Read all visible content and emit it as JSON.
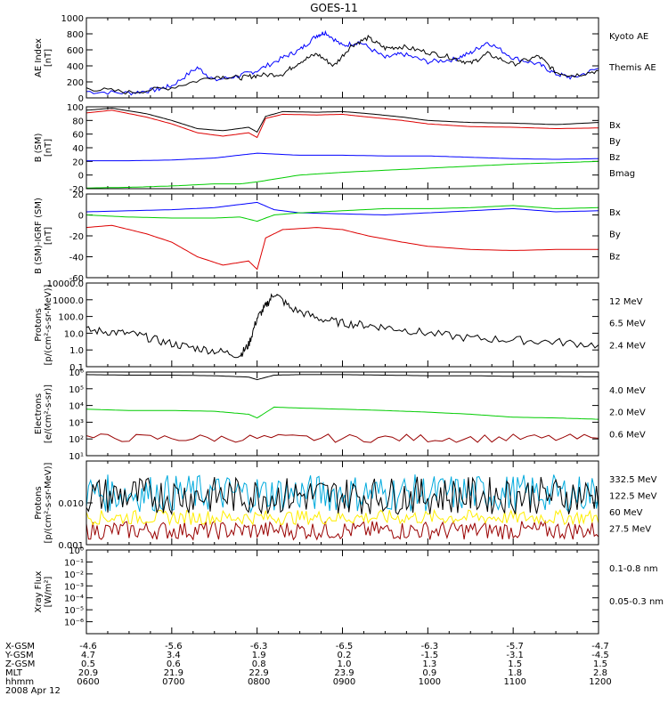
{
  "title": "GOES-11",
  "x_ticks": [
    "0600",
    "0700",
    "0800",
    "0900",
    "1000",
    "1100",
    "1200"
  ],
  "footer": {
    "rows": [
      {
        "label": "X-GSM",
        "values": [
          "-4.6",
          "-5.6",
          "-6.3",
          "-6.5",
          "-6.3",
          "-5.7",
          "-4.7"
        ]
      },
      {
        "label": "Y-GSM",
        "values": [
          "4.7",
          "3.4",
          "1.9",
          "0.2",
          "-1.5",
          "-3.1",
          "-4.5"
        ]
      },
      {
        "label": "Z-GSM",
        "values": [
          "0.5",
          "0.6",
          "0.8",
          "1.0",
          "1.3",
          "1.5",
          "1.5"
        ]
      },
      {
        "label": "MLT",
        "values": [
          "20.9",
          "21.9",
          "22.9",
          "23.9",
          "0.9",
          "1.8",
          "2.8"
        ]
      },
      {
        "label": "hhmm",
        "values": [
          "0600",
          "0700",
          "0800",
          "0900",
          "1000",
          "1100",
          "1200"
        ]
      }
    ],
    "date": "2008 Apr 12"
  },
  "colors": {
    "blue": "#0000ff",
    "green": "#00cc00",
    "red": "#dd0000",
    "darkred": "#990000",
    "yellow": "#ffee00",
    "cyan": "#00aadd",
    "black": "#000000"
  },
  "chart_data": [
    {
      "type": "line",
      "id": "ae",
      "ylabel": [
        "AE Index",
        "[nT]"
      ],
      "ylim": [
        0,
        1000
      ],
      "log": false,
      "ytick_labels": [
        "0",
        "200",
        "400",
        "600",
        "800",
        "1000"
      ],
      "yticks": [
        0,
        200,
        400,
        600,
        800,
        1000
      ],
      "series": [
        {
          "name": "Kyoto AE",
          "color": "blue",
          "x": [
            6.0,
            6.5,
            6.8,
            7.0,
            7.3,
            7.5,
            7.8,
            8.0,
            8.3,
            8.5,
            8.7,
            8.8,
            9.0,
            9.2,
            9.5,
            9.7,
            10.0,
            10.3,
            10.5,
            10.7,
            11.0,
            11.3,
            11.5,
            11.7,
            12.0
          ],
          "y": [
            80,
            60,
            100,
            150,
            380,
            220,
            280,
            340,
            500,
            600,
            780,
            820,
            650,
            700,
            500,
            550,
            450,
            480,
            560,
            700,
            500,
            420,
            300,
            250,
            370
          ]
        },
        {
          "name": "Themis AE",
          "color": "black",
          "x": [
            6.0,
            6.5,
            7.0,
            7.5,
            7.8,
            8.0,
            8.3,
            8.5,
            8.7,
            8.9,
            9.1,
            9.3,
            9.5,
            9.7,
            10.0,
            10.3,
            10.5,
            10.7,
            11.0,
            11.3,
            11.5,
            11.7,
            12.0
          ],
          "y": [
            120,
            70,
            130,
            270,
            250,
            280,
            300,
            450,
            550,
            400,
            650,
            750,
            620,
            640,
            570,
            500,
            430,
            550,
            420,
            520,
            320,
            280,
            340
          ]
        }
      ]
    },
    {
      "type": "line",
      "id": "b_sm",
      "ylabel": [
        "B (SM)",
        "[nT]"
      ],
      "ylim": [
        -20,
        100
      ],
      "log": false,
      "ytick_labels": [
        "-20",
        "0",
        "20",
        "40",
        "60",
        "80",
        "100"
      ],
      "yticks": [
        -20,
        0,
        20,
        40,
        60,
        80,
        100
      ],
      "series": [
        {
          "name": "Bx",
          "color": "blue",
          "x": [
            6.0,
            6.5,
            7.0,
            7.5,
            8.0,
            8.5,
            9.0,
            9.5,
            10.0,
            10.5,
            11.0,
            11.5,
            12.0
          ],
          "y": [
            21,
            21,
            22,
            25,
            32,
            29,
            29,
            28,
            28,
            26,
            24,
            23,
            24
          ]
        },
        {
          "name": "By",
          "color": "green",
          "x": [
            6.0,
            6.5,
            7.0,
            7.5,
            7.8,
            8.0,
            8.5,
            9.0,
            9.5,
            10.0,
            10.5,
            11.0,
            11.5,
            12.0
          ],
          "y": [
            -19,
            -18,
            -16,
            -13,
            -13,
            -10,
            0,
            4,
            7,
            10,
            13,
            16,
            18,
            20
          ]
        },
        {
          "name": "Bz",
          "color": "red",
          "x": [
            6.0,
            6.3,
            6.7,
            7.0,
            7.3,
            7.6,
            7.9,
            8.0,
            8.1,
            8.3,
            8.7,
            9.0,
            9.3,
            9.7,
            10.0,
            10.5,
            11.0,
            11.5,
            12.0
          ],
          "y": [
            91,
            95,
            85,
            75,
            62,
            57,
            62,
            55,
            83,
            89,
            88,
            89,
            85,
            80,
            75,
            71,
            70,
            68,
            69
          ]
        },
        {
          "name": "Bmag",
          "color": "black",
          "x": [
            6.0,
            6.3,
            6.7,
            7.0,
            7.3,
            7.6,
            7.9,
            8.0,
            8.1,
            8.3,
            8.7,
            9.0,
            9.3,
            9.7,
            10.0,
            10.5,
            11.0,
            11.5,
            12.0
          ],
          "y": [
            95,
            98,
            90,
            80,
            68,
            65,
            70,
            63,
            86,
            93,
            92,
            93,
            90,
            85,
            80,
            77,
            76,
            74,
            77
          ]
        }
      ]
    },
    {
      "type": "line",
      "id": "b_igrf",
      "ylabel": [
        "B (SM)-IGRF (SM)",
        "[nT]"
      ],
      "ylim": [
        -60,
        20
      ],
      "log": false,
      "ytick_labels": [
        "-60",
        "-40",
        "-20",
        "0",
        "20"
      ],
      "yticks": [
        -60,
        -40,
        -20,
        0,
        20
      ],
      "series": [
        {
          "name": "Bx",
          "color": "blue",
          "x": [
            6.0,
            6.5,
            7.0,
            7.5,
            7.8,
            8.0,
            8.2,
            8.5,
            9.0,
            9.5,
            10.0,
            10.5,
            11.0,
            11.5,
            12.0
          ],
          "y": [
            3,
            4,
            5,
            7,
            10,
            12,
            5,
            2,
            1,
            0,
            2,
            4,
            6,
            3,
            4
          ]
        },
        {
          "name": "By",
          "color": "green",
          "x": [
            6.0,
            6.5,
            7.0,
            7.5,
            7.8,
            8.0,
            8.2,
            8.5,
            9.0,
            9.5,
            10.0,
            10.5,
            11.0,
            11.5,
            12.0
          ],
          "y": [
            0,
            -2,
            -3,
            -3,
            -2,
            -6,
            0,
            2,
            4,
            6,
            6,
            7,
            9,
            6,
            7
          ]
        },
        {
          "name": "Bz",
          "color": "red",
          "x": [
            6.0,
            6.3,
            6.7,
            7.0,
            7.3,
            7.6,
            7.9,
            8.0,
            8.1,
            8.3,
            8.7,
            9.0,
            9.3,
            9.7,
            10.0,
            10.5,
            11.0,
            11.5,
            12.0
          ],
          "y": [
            -12,
            -10,
            -18,
            -26,
            -40,
            -48,
            -44,
            -52,
            -22,
            -14,
            -12,
            -14,
            -20,
            -26,
            -30,
            -33,
            -34,
            -33,
            -33
          ]
        }
      ]
    },
    {
      "type": "line",
      "id": "protons_low",
      "ylabel": [
        "Protons",
        "[p/(cm²-s-sr-MeV)]"
      ],
      "ylim": [
        0.1,
        10000
      ],
      "log": true,
      "ytick_labels": [
        "0.1",
        "1.0",
        "10.0",
        "100.0",
        "1000.0",
        "10000.0"
      ],
      "yticks": [
        0.1,
        1,
        10,
        100,
        1000,
        10000
      ],
      "series": [
        {
          "name": "12 MeV",
          "color": "red",
          "x": [],
          "y": []
        },
        {
          "name": "6.5 MeV",
          "color": "green",
          "x": [],
          "y": []
        },
        {
          "name": "2.4 MeV",
          "color": "black",
          "x": [
            6.0,
            6.3,
            6.6,
            6.9,
            7.2,
            7.5,
            7.8,
            7.9,
            8.0,
            8.1,
            8.2,
            8.4,
            8.7,
            9.0,
            9.3,
            9.6,
            10.0,
            10.5,
            11.0,
            11.5,
            12.0
          ],
          "y": [
            15,
            12,
            8,
            3,
            1.5,
            0.9,
            0.5,
            2,
            80,
            400,
            2500,
            300,
            80,
            40,
            30,
            20,
            10,
            5,
            4,
            3,
            2
          ]
        }
      ]
    },
    {
      "type": "line",
      "id": "electrons",
      "ylabel": [
        "Electrons",
        "[e/(cm²-s-sr)]"
      ],
      "ylim": [
        10,
        1000000
      ],
      "log": true,
      "ytick_labels": [
        "10¹",
        "10²",
        "10³",
        "10⁴",
        "10⁵",
        "10⁶"
      ],
      "yticks": [
        10,
        100,
        1000,
        10000,
        100000,
        1000000
      ],
      "series": [
        {
          "name": "4.0 MeV",
          "color": "darkred",
          "x": [
            6.0,
            7.0,
            8.0,
            9.0,
            10.0,
            11.0,
            12.0
          ],
          "y": [
            120,
            110,
            110,
            110,
            110,
            110,
            110
          ]
        },
        {
          "name": "2.0 MeV",
          "color": "green",
          "x": [
            6.0,
            6.5,
            7.0,
            7.5,
            7.9,
            8.0,
            8.2,
            8.5,
            9.0,
            9.5,
            10.0,
            10.5,
            11.0,
            11.5,
            12.0
          ],
          "y": [
            6000,
            5000,
            5000,
            4500,
            3000,
            1800,
            8000,
            7000,
            6000,
            5000,
            4000,
            3000,
            2000,
            1800,
            1500
          ]
        },
        {
          "name": "0.6 MeV",
          "color": "black",
          "x": [
            6.0,
            6.5,
            7.0,
            7.5,
            7.9,
            8.0,
            8.2,
            8.5,
            9.0,
            9.5,
            10.0,
            10.5,
            11.0,
            11.5,
            12.0
          ],
          "y": [
            700000,
            650000,
            650000,
            600000,
            500000,
            350000,
            650000,
            700000,
            700000,
            650000,
            600000,
            600000,
            550000,
            550000,
            520000
          ]
        }
      ]
    },
    {
      "type": "line",
      "id": "protons_high",
      "ylabel": [
        "Protons",
        "[p/(cm²-s-sr-MeV)]"
      ],
      "ylim": [
        0.001,
        0.1
      ],
      "log": true,
      "ytick_labels": [
        "0.001",
        "0.010"
      ],
      "yticks": [
        0.001,
        0.01
      ],
      "series": [
        {
          "name": "332.5 MeV",
          "color": "darkred",
          "level": 0.0022
        },
        {
          "name": "122.5 MeV",
          "color": "yellow",
          "level": 0.0045
        },
        {
          "name": "60 MeV",
          "color": "cyan",
          "level": 0.017
        },
        {
          "name": "27.5 MeV",
          "color": "black",
          "level": 0.015
        }
      ]
    },
    {
      "type": "line",
      "id": "xray",
      "ylabel": [
        "Xray Flux",
        "[W/m²]"
      ],
      "ylim": [
        1e-07,
        1
      ],
      "log": true,
      "ytick_labels": [
        "10⁰",
        "10⁻¹",
        "10⁻²",
        "10⁻³",
        "10⁻⁴",
        "10⁻⁵",
        "10⁻⁶"
      ],
      "yticks": [
        1,
        0.1,
        0.01,
        0.001,
        0.0001,
        1e-05,
        1e-06
      ],
      "series": [
        {
          "name": "0.1-0.8 nm",
          "color": "darkred",
          "x": [],
          "y": []
        },
        {
          "name": "0.05-0.3 nm",
          "color": "blue",
          "x": [],
          "y": []
        }
      ]
    }
  ]
}
